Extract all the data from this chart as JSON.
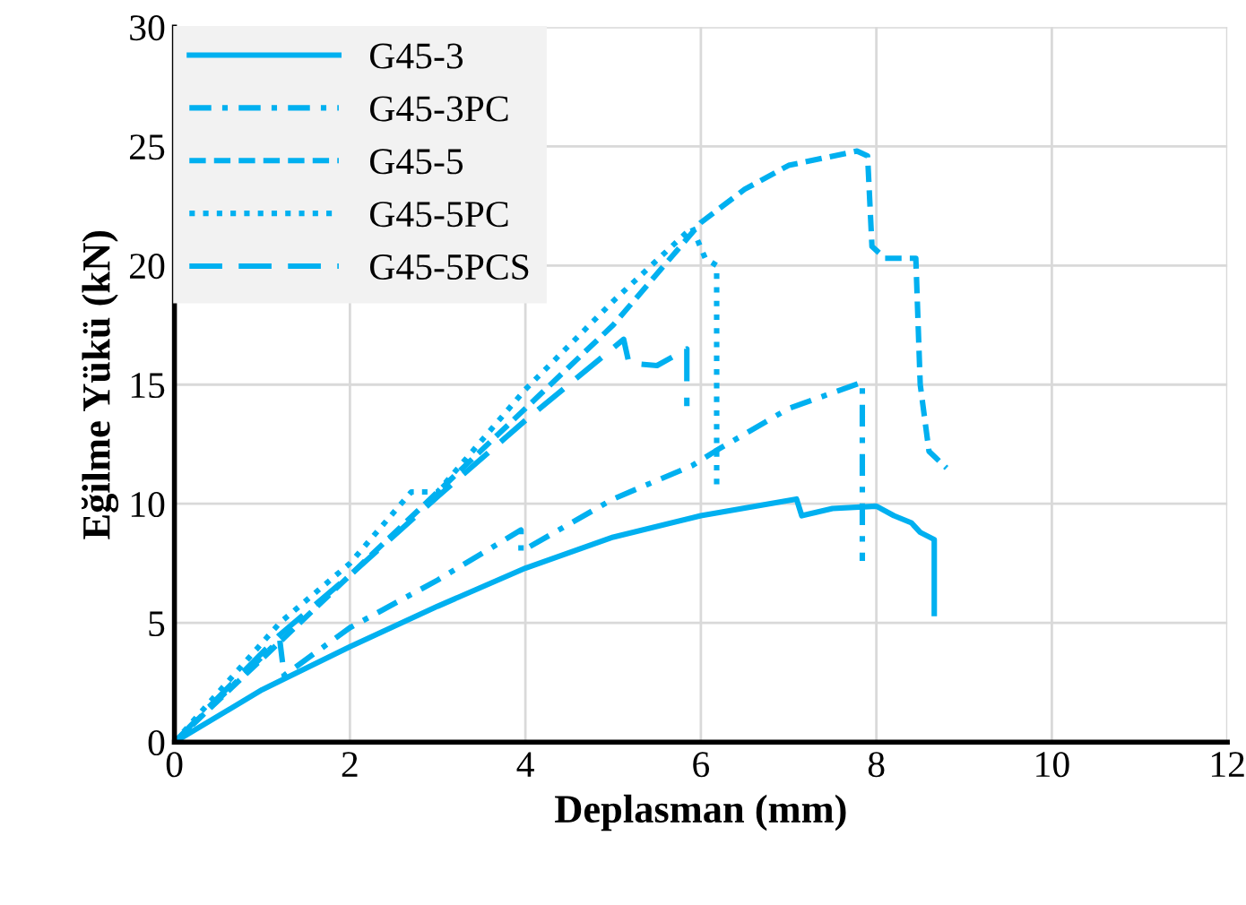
{
  "chart_data": {
    "type": "line",
    "xlabel": "Deplasman (mm)",
    "ylabel": "Eğilme Yükü (kN)",
    "xlim": [
      0,
      12
    ],
    "ylim": [
      0,
      30
    ],
    "xticks": [
      0,
      2,
      4,
      6,
      8,
      10,
      12
    ],
    "yticks": [
      0,
      5,
      10,
      15,
      20,
      25,
      30
    ],
    "grid": true,
    "legend": "top left",
    "marker": "none",
    "series": [
      {
        "name": "G45-3",
        "color": "#00b0f0",
        "line_style": "solid",
        "x": [
          0,
          1,
          2,
          3,
          4,
          5,
          6,
          7.09,
          7.15,
          7.5,
          8,
          8.2,
          8.4,
          8.5,
          8.66,
          8.66
        ],
        "values": [
          0,
          2.2,
          4,
          5.7,
          7.3,
          8.6,
          9.5,
          10.2,
          9.5,
          9.8,
          9.9,
          9.5,
          9.2,
          8.8,
          8.5,
          5.4
        ]
      },
      {
        "name": "G45-3PC",
        "color": "#00b0f0",
        "line_style": "dashdot",
        "x": [
          0,
          1.2,
          1.25,
          2,
          3,
          3.95,
          3.95,
          4,
          5,
          5.9,
          6.16,
          7,
          7.84,
          7.84
        ],
        "values": [
          0,
          4.3,
          2.8,
          4.8,
          6.8,
          8.9,
          8,
          8.1,
          10.2,
          11.6,
          12.2,
          14,
          15.1,
          7.6
        ]
      },
      {
        "name": "G45-5",
        "color": "#00b0f0",
        "line_style": "dashed",
        "x": [
          0,
          2,
          4,
          5,
          6,
          6.5,
          7,
          7.78,
          7.9,
          7.95,
          8.1,
          8.45,
          8.5,
          8.6,
          8.8
        ],
        "values": [
          0,
          7,
          14,
          17.5,
          21.8,
          23.2,
          24.2,
          24.8,
          24.6,
          20.8,
          20.3,
          20.3,
          15,
          12.2,
          11.5
        ]
      },
      {
        "name": "G45-5PC",
        "color": "#00b0f0",
        "line_style": "dotted",
        "x": [
          0,
          1.2,
          2,
          2.7,
          3,
          4,
          5,
          5.9,
          6.05,
          6.18,
          6.18
        ],
        "values": [
          0,
          5,
          7.5,
          10.5,
          10.5,
          14.8,
          18.5,
          21.6,
          20.3,
          20,
          10.5
        ]
      },
      {
        "name": "G45-5PCS",
        "color": "#00b0f0",
        "line_style": "longdash",
        "x": [
          0,
          1.2,
          2,
          3,
          4,
          5.12,
          5.18,
          5.5,
          5.84,
          5.84
        ],
        "values": [
          0,
          4.5,
          7,
          10.3,
          13.5,
          16.9,
          15.9,
          15.8,
          16.5,
          14.1
        ]
      }
    ]
  }
}
